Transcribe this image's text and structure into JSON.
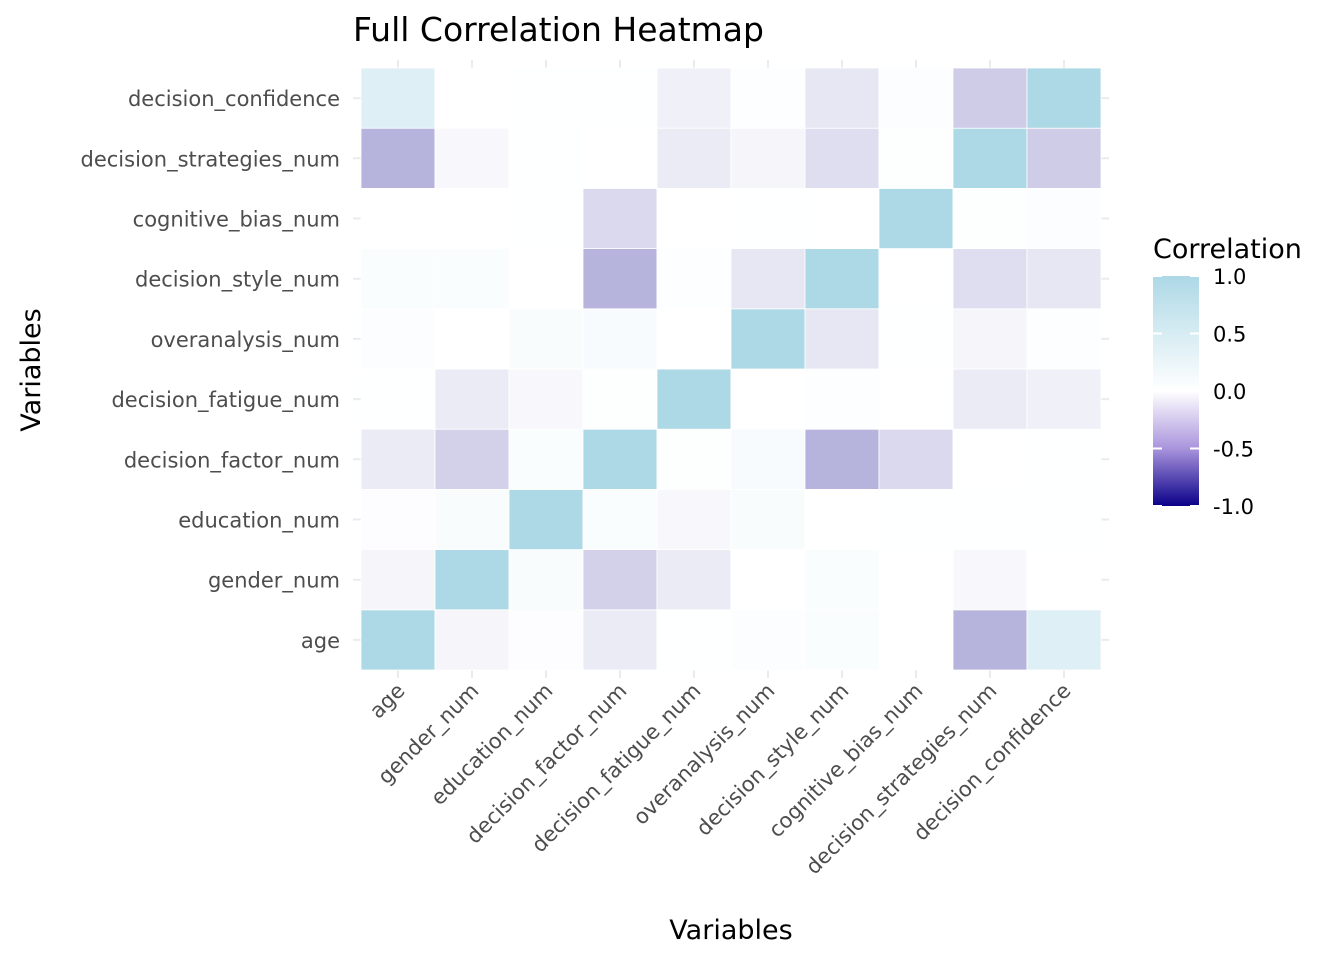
{
  "chart_data": {
    "type": "heatmap",
    "title": "Full Correlation Heatmap",
    "xlabel": "Variables",
    "ylabel": "Variables",
    "variables": [
      "age",
      "gender_num",
      "education_num",
      "decision_factor_num",
      "decision_fatigue_num",
      "overanalysis_num",
      "decision_style_num",
      "cognitive_bias_num",
      "decision_strategies_num",
      "decision_confidence"
    ],
    "matrix": [
      [
        1.0,
        -0.04,
        -0.01,
        -0.08,
        0.01,
        0.04,
        0.06,
        0.0,
        -0.3,
        0.4
      ],
      [
        -0.04,
        1.0,
        0.08,
        -0.18,
        -0.08,
        0.0,
        0.06,
        0.0,
        -0.03,
        0.0
      ],
      [
        -0.01,
        0.08,
        1.0,
        0.06,
        -0.03,
        0.07,
        0.0,
        0.01,
        0.01,
        0.01
      ],
      [
        -0.08,
        -0.18,
        0.06,
        1.0,
        0.03,
        0.1,
        -0.3,
        -0.15,
        0.0,
        0.01
      ],
      [
        0.01,
        -0.08,
        -0.03,
        0.03,
        1.0,
        0.0,
        0.02,
        0.0,
        -0.08,
        -0.06
      ],
      [
        0.04,
        0.0,
        0.07,
        0.1,
        0.0,
        1.0,
        -0.1,
        0.01,
        -0.04,
        0.02
      ],
      [
        0.06,
        0.06,
        0.0,
        -0.3,
        0.02,
        -0.1,
        1.0,
        0.0,
        -0.13,
        -0.1
      ],
      [
        0.0,
        0.0,
        0.01,
        -0.15,
        0.0,
        0.01,
        0.0,
        1.0,
        0.03,
        0.04
      ],
      [
        -0.3,
        -0.03,
        0.01,
        0.0,
        -0.08,
        -0.04,
        -0.13,
        0.03,
        1.0,
        -0.2
      ],
      [
        0.4,
        0.0,
        0.01,
        0.01,
        -0.06,
        0.02,
        -0.1,
        0.04,
        -0.2,
        1.0
      ]
    ],
    "color_scale": {
      "low": "#0a0089",
      "mid": "#ffffff",
      "high": "#add8e6",
      "limits": [
        -1,
        1
      ]
    },
    "legend": {
      "title": "Correlation",
      "placement": "right",
      "ticks": [
        "1.0",
        "0.5",
        "0.0",
        "-0.5",
        "-1.0"
      ],
      "tick_values": [
        1,
        0.5,
        0,
        -0.5,
        -1
      ]
    },
    "grid": true
  }
}
